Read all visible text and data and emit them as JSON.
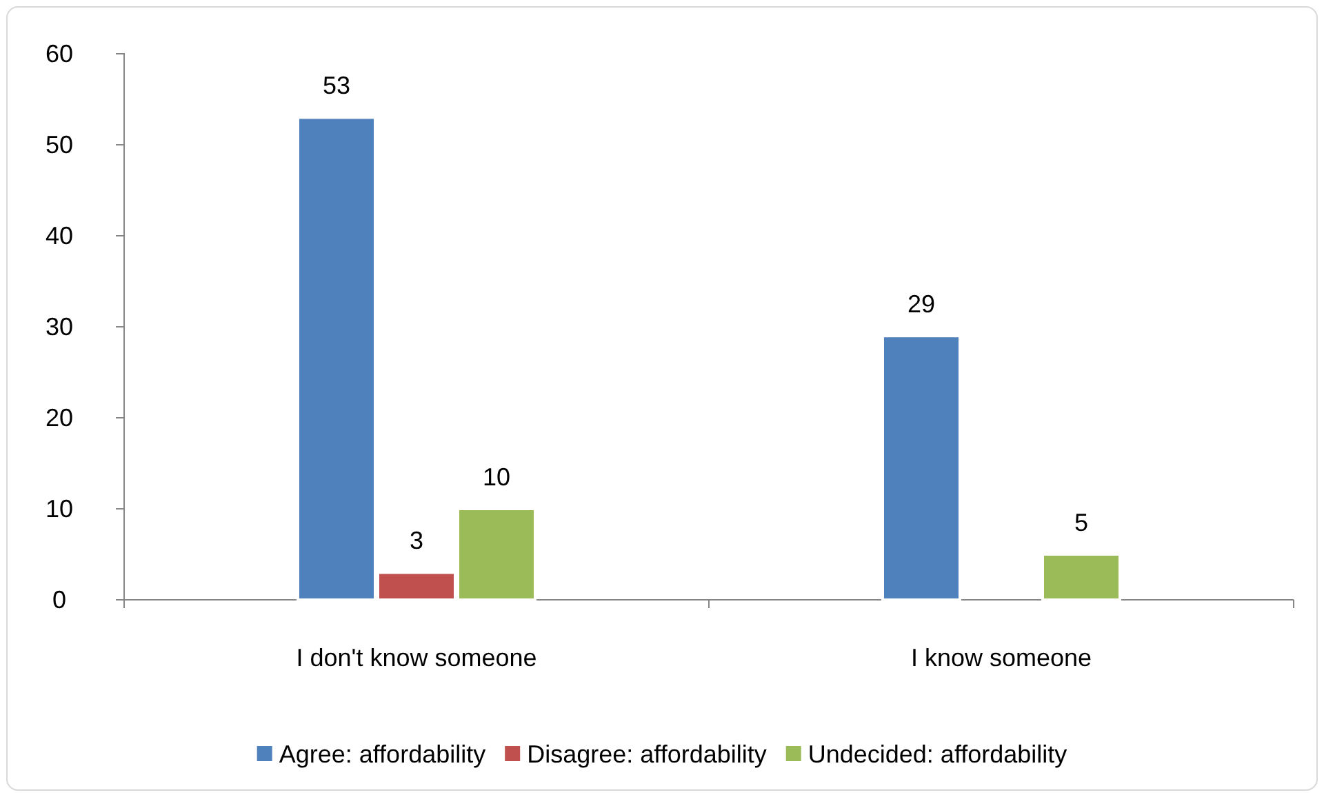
{
  "chart_data": {
    "type": "bar",
    "categories": [
      "I don't know someone",
      "I know someone"
    ],
    "series": [
      {
        "name": "Agree: affordability",
        "color": "#4f81bd",
        "values": [
          53,
          29
        ]
      },
      {
        "name": "Disagree: affordability",
        "color": "#c0504d",
        "values": [
          3,
          null
        ]
      },
      {
        "name": "Undecided: affordability",
        "color": "#9bbb59",
        "values": [
          10,
          5
        ]
      }
    ],
    "ylim": [
      0,
      60
    ],
    "yticks": [
      0,
      10,
      20,
      30,
      40,
      50,
      60
    ],
    "grid": false,
    "legend": "bottom",
    "data_labels": true
  }
}
